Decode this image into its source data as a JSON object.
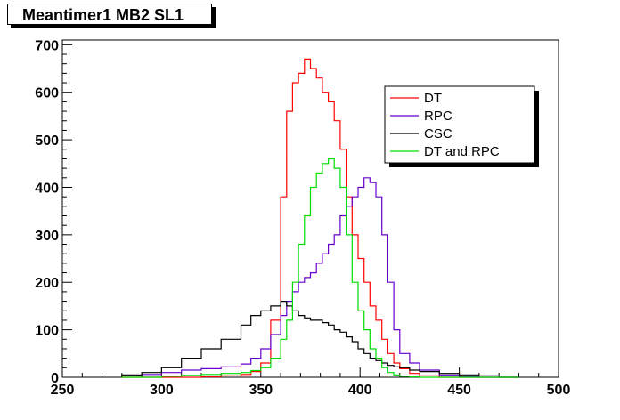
{
  "title": "Meantimer1 MB2 SL1",
  "chart_data": {
    "type": "line",
    "style": "step-histogram",
    "title": "Meantimer1 MB2 SL1",
    "xlabel": "",
    "ylabel": "",
    "xlim": [
      250,
      500
    ],
    "ylim": [
      0,
      710
    ],
    "grid": false,
    "legend_position": "top-right",
    "x_ticks": [
      250,
      300,
      350,
      400,
      450,
      500
    ],
    "y_ticks": [
      0,
      100,
      200,
      300,
      400,
      500,
      600,
      700
    ],
    "x": [
      280,
      290,
      300,
      310,
      320,
      330,
      340,
      345,
      350,
      355,
      360,
      363,
      366,
      369,
      372,
      375,
      378,
      381,
      384,
      387,
      390,
      393,
      396,
      399,
      402,
      405,
      408,
      411,
      414,
      417,
      420,
      425,
      430,
      440,
      450,
      460,
      470
    ],
    "series": [
      {
        "name": "DT",
        "color": "#ff0000",
        "values": [
          0,
          0,
          0,
          0,
          1,
          3,
          6,
          12,
          30,
          120,
          380,
          560,
          620,
          640,
          670,
          650,
          630,
          600,
          580,
          540,
          480,
          380,
          300,
          250,
          200,
          150,
          120,
          80,
          50,
          30,
          18,
          8,
          3,
          0,
          0,
          0,
          0
        ]
      },
      {
        "name": "RPC",
        "color": "#6600cc",
        "values": [
          3,
          6,
          10,
          15,
          18,
          22,
          28,
          40,
          60,
          90,
          130,
          160,
          180,
          200,
          210,
          220,
          240,
          260,
          280,
          300,
          340,
          360,
          380,
          400,
          420,
          410,
          380,
          300,
          200,
          100,
          50,
          30,
          15,
          5,
          2,
          0,
          0
        ]
      },
      {
        "name": "CSC",
        "color": "#000000",
        "values": [
          5,
          10,
          20,
          40,
          60,
          80,
          110,
          130,
          140,
          150,
          160,
          150,
          140,
          130,
          125,
          120,
          120,
          115,
          110,
          100,
          95,
          85,
          75,
          60,
          50,
          40,
          35,
          30,
          25,
          22,
          20,
          15,
          12,
          8,
          5,
          3,
          0
        ]
      },
      {
        "name": "DT and RPC",
        "color": "#00dd00",
        "values": [
          0,
          0,
          2,
          4,
          6,
          8,
          10,
          14,
          20,
          40,
          80,
          120,
          200,
          280,
          340,
          400,
          430,
          450,
          460,
          440,
          400,
          300,
          200,
          140,
          100,
          60,
          40,
          20,
          10,
          5,
          2,
          1,
          0,
          0,
          0,
          0,
          0
        ]
      }
    ]
  }
}
